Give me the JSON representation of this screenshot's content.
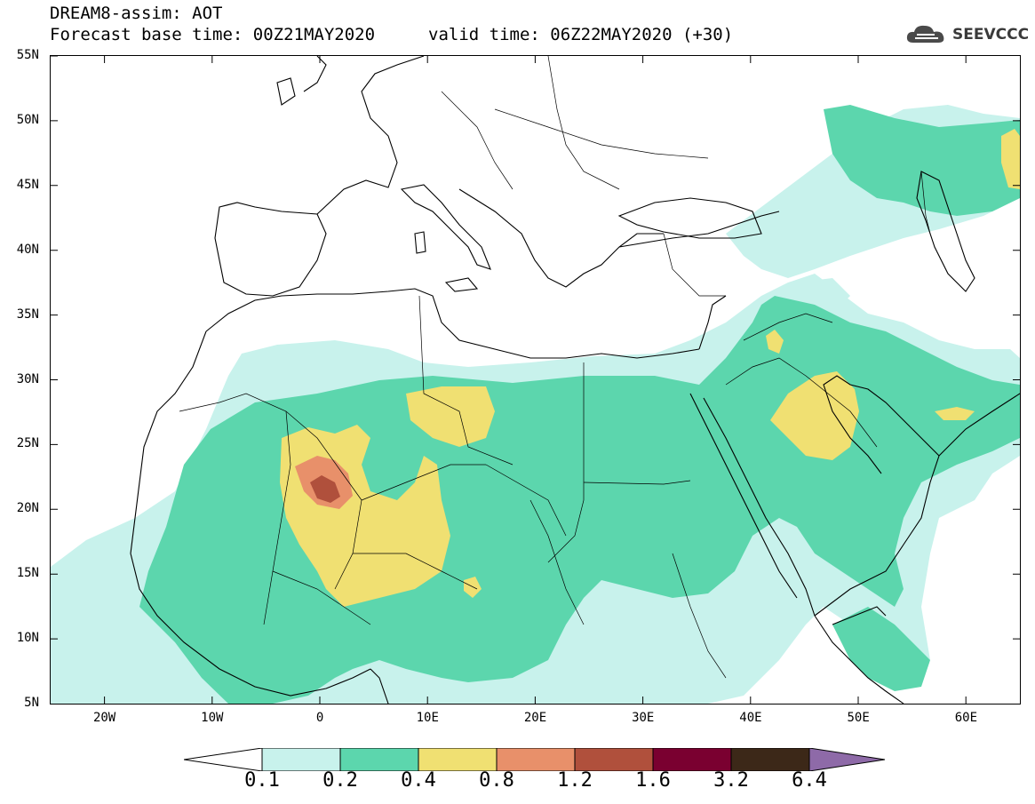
{
  "header": {
    "title": "DREAM8-assim: AOT",
    "base_time": "Forecast base time: 00Z21MAY2020",
    "valid_time": "valid time: 06Z22MAY2020 (+30)"
  },
  "logo": {
    "text": "SEEVCCC",
    "icon": "cloud-icon"
  },
  "map": {
    "extent": {
      "lon": [
        -25,
        65
      ],
      "lat": [
        5,
        55
      ]
    },
    "lat_labels": [
      "55N",
      "50N",
      "45N",
      "40N",
      "35N",
      "30N",
      "25N",
      "20N",
      "15N",
      "10N",
      "5N"
    ],
    "lon_labels": [
      "20W",
      "10W",
      "0",
      "10E",
      "20E",
      "30E",
      "40E",
      "50E",
      "60E"
    ],
    "colors": {
      "c0_1": "#c8f2ec",
      "c0_2": "#5cd6ad",
      "c0_4": "#f0e072",
      "c0_8": "#e8906a",
      "c1_2": "#b0503c",
      "c1_6": "#7a0030",
      "c3_2": "#3c2818",
      "c6_4": "#8e6aa8"
    }
  },
  "colorbar": {
    "labels": [
      "0.1",
      "0.2",
      "0.4",
      "0.8",
      "1.2",
      "1.6",
      "3.2",
      "6.4"
    ]
  }
}
